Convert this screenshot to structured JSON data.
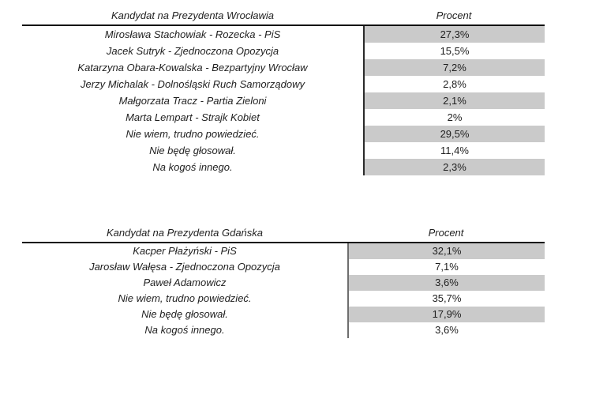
{
  "colors": {
    "row_shade": "#cacaca",
    "header_rule": "#111111",
    "divider_table1": "#2b2b2b",
    "divider_table2": "#6e6e6e",
    "text": "#1f1f1f",
    "background": "#ffffff"
  },
  "tables": [
    {
      "id": "wroclaw",
      "header": {
        "candidate": "Kandydat na Prezydenta Wrocławia",
        "percent": "Procent"
      },
      "rows": [
        {
          "candidate": "Mirosława Stachowiak - Rozecka - PiS",
          "percent": "27,3%"
        },
        {
          "candidate": "Jacek Sutryk - Zjednoczona Opozycja",
          "percent": "15,5%"
        },
        {
          "candidate": "Katarzyna Obara-Kowalska - Bezpartyjny Wrocław",
          "percent": "7,2%"
        },
        {
          "candidate": "Jerzy Michalak - Dolnośląski Ruch Samorządowy",
          "percent": "2,8%"
        },
        {
          "candidate": "Małgorzata Tracz - Partia Zieloni",
          "percent": "2,1%"
        },
        {
          "candidate": "Marta Lempart - Strajk Kobiet",
          "percent": "2%"
        },
        {
          "candidate": "Nie wiem, trudno powiedzieć.",
          "percent": "29,5%"
        },
        {
          "candidate": "Nie będę głosował.",
          "percent": "11,4%"
        },
        {
          "candidate": "Na kogoś innego.",
          "percent": "2,3%"
        }
      ]
    },
    {
      "id": "gdansk",
      "header": {
        "candidate": "Kandydat na Prezydenta Gdańska",
        "percent": "Procent"
      },
      "rows": [
        {
          "candidate": "Kacper Płażyński - PiS",
          "percent": "32,1%"
        },
        {
          "candidate": "Jarosław Wałęsa - Zjednoczona Opozycja",
          "percent": "7,1%"
        },
        {
          "candidate": "Paweł Adamowicz",
          "percent": "3,6%"
        },
        {
          "candidate": "Nie wiem, trudno powiedzieć.",
          "percent": "35,7%"
        },
        {
          "candidate": "Nie będę głosował.",
          "percent": "17,9%"
        },
        {
          "candidate": "Na kogoś innego.",
          "percent": "3,6%"
        }
      ]
    }
  ],
  "chart_data": [
    {
      "type": "table",
      "title": "Kandydat na Prezydenta Wrocławia",
      "columns": [
        "Kandydat na Prezydenta Wrocławia",
        "Procent"
      ],
      "categories": [
        "Mirosława Stachowiak - Rozecka - PiS",
        "Jacek Sutryk - Zjednoczona Opozycja",
        "Katarzyna Obara-Kowalska - Bezpartyjny Wrocław",
        "Jerzy Michalak - Dolnośląski Ruch Samorządowy",
        "Małgorzata Tracz - Partia Zieloni",
        "Marta Lempart - Strajk Kobiet",
        "Nie wiem, trudno powiedzieć.",
        "Nie będę głosował.",
        "Na kogoś innego."
      ],
      "values": [
        27.3,
        15.5,
        7.2,
        2.8,
        2.1,
        2,
        29.5,
        11.4,
        2.3
      ],
      "unit": "%"
    },
    {
      "type": "table",
      "title": "Kandydat na Prezydenta Gdańska",
      "columns": [
        "Kandydat na Prezydenta Gdańska",
        "Procent"
      ],
      "categories": [
        "Kacper Płażyński - PiS",
        "Jarosław Wałęsa - Zjednoczona Opozycja",
        "Paweł Adamowicz",
        "Nie wiem, trudno powiedzieć.",
        "Nie będę głosował.",
        "Na kogoś innego."
      ],
      "values": [
        32.1,
        7.1,
        3.6,
        35.7,
        17.9,
        3.6
      ],
      "unit": "%"
    }
  ]
}
